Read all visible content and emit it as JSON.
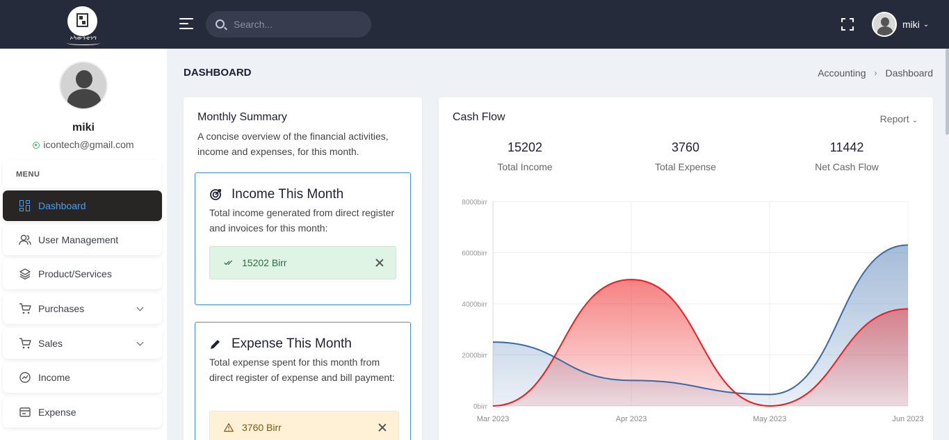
{
  "logo": {
    "text": "ኦካውንቲንግ"
  },
  "search": {
    "placeholder": "Search..."
  },
  "user": {
    "name": "miki",
    "email": "icontech@gmail.com"
  },
  "sidebar": {
    "menu_title": "MENU",
    "items": [
      {
        "label": "Dashboard",
        "icon": "dashboard-icon",
        "active": true
      },
      {
        "label": "User Management",
        "icon": "users-icon"
      },
      {
        "label": "Product/Services",
        "icon": "layers-icon"
      },
      {
        "label": "Purchases",
        "icon": "cart-icon",
        "has_submenu": true
      },
      {
        "label": "Sales",
        "icon": "cart-icon",
        "has_submenu": true
      },
      {
        "label": "Income",
        "icon": "income-icon"
      },
      {
        "label": "Expense",
        "icon": "expense-icon"
      }
    ]
  },
  "page": {
    "title": "DASHBOARD",
    "breadcrumb": [
      "Accounting",
      "Dashboard"
    ]
  },
  "summary": {
    "title": "Monthly Summary",
    "desc": "A concise overview of the financial activities, income and expenses, for this month.",
    "income": {
      "title": "Income This Month",
      "desc": "Total income generated from direct register and invoices for this month:",
      "alert": "15202 Birr"
    },
    "expense": {
      "title": "Expense This Month",
      "desc": "Total expense spent for this month from direct register of expense and bill payment:",
      "alert": "3760 Birr"
    }
  },
  "cashflow": {
    "title": "Cash Flow",
    "report_label": "Report",
    "stats": [
      {
        "value": "15202",
        "label": "Total Income"
      },
      {
        "value": "3760",
        "label": "Total Expense"
      },
      {
        "value": "11442",
        "label": "Net Cash Flow"
      }
    ]
  },
  "colors": {
    "income": "#3569a8",
    "expense": "#ee1c1c",
    "accent": "#4a9ff5",
    "topbar": "#252b3b"
  },
  "chart_data": {
    "type": "area",
    "x": [
      "Mar 2023",
      "Apr 2023",
      "May 2023",
      "Jun 2023"
    ],
    "series": [
      {
        "values": [
          2500,
          1000,
          450,
          6300
        ],
        "color": "#3569a8"
      },
      {
        "values": [
          0,
          4950,
          0,
          3800
        ],
        "color": "#ee1c1c"
      }
    ],
    "ylim": [
      0,
      8000
    ],
    "yticks": [
      0,
      2000,
      4000,
      6000,
      8000
    ],
    "ytick_labels": [
      "0birr",
      "2000birr",
      "4000birr",
      "6000birr",
      "8000birr"
    ],
    "grid": true
  }
}
